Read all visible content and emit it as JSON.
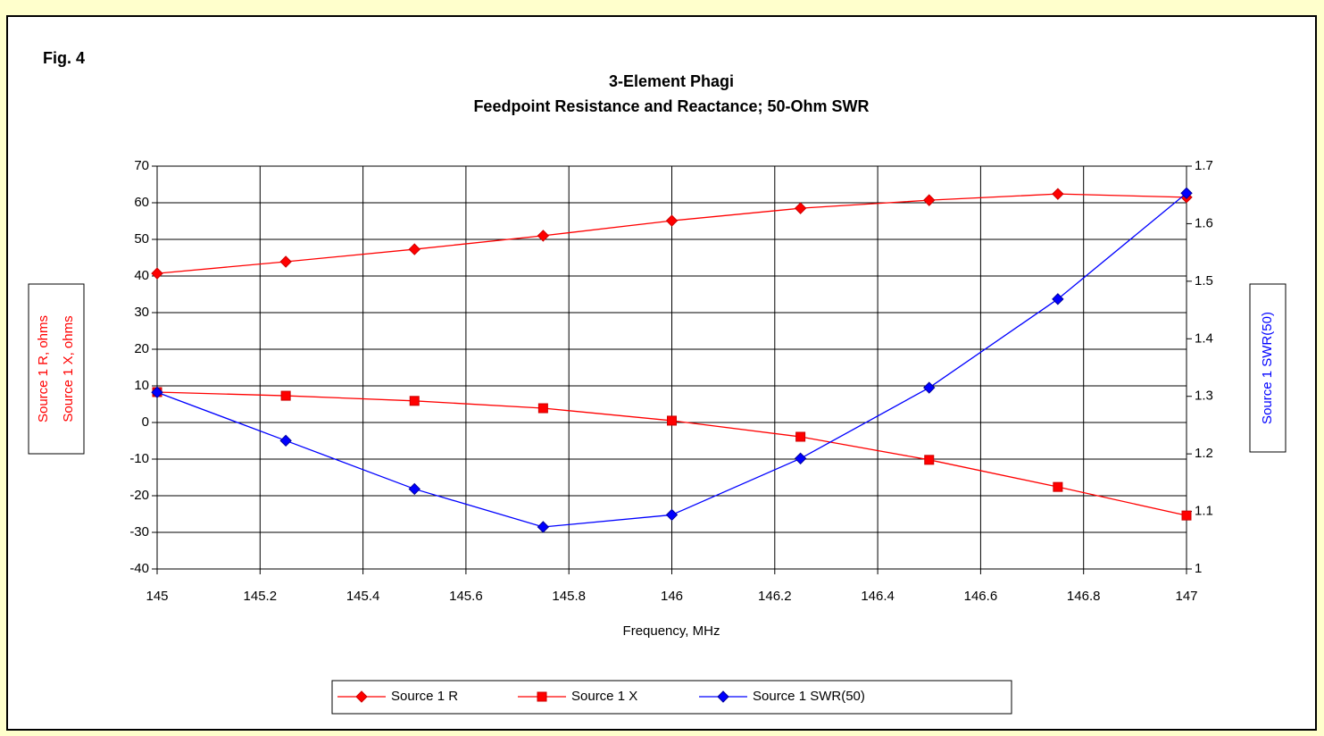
{
  "chart_data": {
    "type": "line",
    "figure_label": "Fig. 4",
    "title": "3-Element Phagi",
    "subtitle": "Feedpoint Resistance and Reactance; 50-Ohm SWR",
    "xlabel": "Frequency, MHz",
    "ylabel": [
      "Source 1 R,  ohms",
      "Source 1 X,  ohms"
    ],
    "y2label": "Source 1 SWR(50)",
    "x": [
      145,
      145.25,
      145.5,
      145.75,
      146,
      146.25,
      146.5,
      146.75,
      147
    ],
    "xlim": [
      145,
      147
    ],
    "xticks": [
      145,
      145.2,
      145.4,
      145.6,
      145.8,
      146,
      146.2,
      146.4,
      146.6,
      146.8,
      147
    ],
    "ylim": [
      -40,
      70
    ],
    "yticks": [
      -40,
      -30,
      -20,
      -10,
      0,
      10,
      20,
      30,
      40,
      50,
      60,
      70
    ],
    "y2lim": [
      1,
      1.7
    ],
    "y2ticks": [
      1,
      1.1,
      1.2,
      1.3,
      1.4,
      1.5,
      1.6,
      1.7
    ],
    "grid": true,
    "legend": "bottom",
    "series": [
      {
        "name": "Source 1 R",
        "color": "#ff0000",
        "marker": "diamond",
        "marker_color": "#cc0000",
        "values": [
          40.7,
          43.9,
          47.3,
          51.0,
          55.1,
          58.5,
          60.7,
          62.4,
          61.5
        ]
      },
      {
        "name": "Source 1 X",
        "color": "#ff0000",
        "marker": "square",
        "marker_color": "#cc0000",
        "values": [
          8.3,
          7.3,
          5.9,
          3.9,
          0.5,
          -3.9,
          -10.2,
          -17.6,
          -25.4
        ]
      },
      {
        "name": "Source 1 SWR(50)",
        "color": "#0000ff",
        "marker": "diamond",
        "marker_color": "#000099",
        "axis": "y2",
        "values": [
          1.307,
          1.223,
          1.139,
          1.073,
          1.094,
          1.192,
          1.315,
          1.469,
          1.653
        ]
      }
    ]
  }
}
